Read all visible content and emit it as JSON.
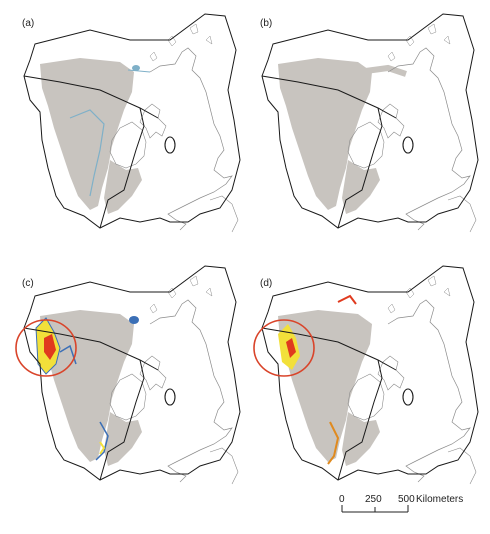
{
  "figure": {
    "panels": [
      {
        "id": "a",
        "label": "(a)"
      },
      {
        "id": "b",
        "label": "(b)"
      },
      {
        "id": "c",
        "label": "(c)"
      },
      {
        "id": "d",
        "label": "(d)"
      }
    ],
    "scale_bar": {
      "ticks": [
        "0",
        "250",
        "500"
      ],
      "unit": "Kilometers"
    },
    "colors": {
      "landmass_outline": "#8c8c8c",
      "shaded_area": "#c8c4bf",
      "boundary": "#1a1a1a",
      "highlight_circle": "#d9442a",
      "model_low": "#3b6fb6",
      "model_mid": "#f2e03a",
      "model_high": "#e03a1e",
      "channel": "#7fb0c8"
    }
  }
}
